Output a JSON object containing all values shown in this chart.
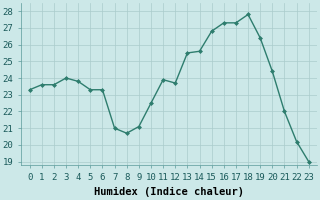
{
  "xlabel": "Humidex (Indice chaleur)",
  "ylabel": "",
  "x": [
    0,
    1,
    2,
    3,
    4,
    5,
    6,
    7,
    8,
    9,
    10,
    11,
    12,
    13,
    14,
    15,
    16,
    17,
    18,
    19,
    20,
    21,
    22,
    23
  ],
  "y": [
    23.3,
    23.6,
    23.6,
    24.0,
    23.8,
    23.3,
    23.3,
    21.0,
    20.7,
    21.1,
    22.5,
    23.9,
    23.7,
    25.5,
    25.6,
    26.8,
    27.3,
    27.3,
    27.8,
    26.4,
    24.4,
    22.0,
    20.2,
    19.0
  ],
  "line_color": "#2e7d6e",
  "marker": "D",
  "marker_size": 2.0,
  "bg_color": "#cce8e8",
  "grid_color": "#aacccc",
  "ylim": [
    18.8,
    28.5
  ],
  "yticks": [
    19,
    20,
    21,
    22,
    23,
    24,
    25,
    26,
    27,
    28
  ],
  "xticks": [
    0,
    1,
    2,
    3,
    4,
    5,
    6,
    7,
    8,
    9,
    10,
    11,
    12,
    13,
    14,
    15,
    16,
    17,
    18,
    19,
    20,
    21,
    22,
    23
  ],
  "tick_label_fontsize": 6.5,
  "xlabel_fontsize": 7.5,
  "title_fontsize": 6.5,
  "line_width": 1.0
}
